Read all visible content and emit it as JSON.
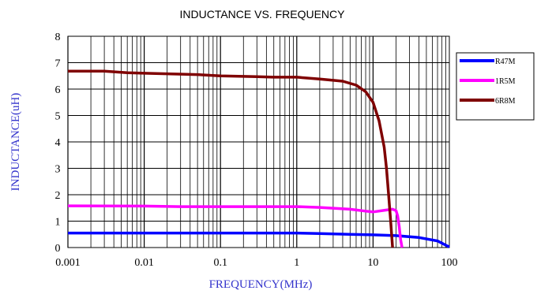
{
  "chart_data": {
    "type": "line",
    "title": "INDUCTANCE VS. FREQUENCY",
    "xlabel": "FREQUENCY(MHz)",
    "ylabel": "INDUCTANCE(uH)",
    "x_scale": "log",
    "xlim": [
      0.001,
      100
    ],
    "ylim": [
      0,
      8
    ],
    "x_ticks": [
      "0.001",
      "0.01",
      "0.1",
      "1",
      "10",
      "100"
    ],
    "y_ticks": [
      "0",
      "1",
      "2",
      "3",
      "4",
      "5",
      "6",
      "7",
      "8"
    ],
    "grid": true,
    "legend_position": "right",
    "label_color": "#3333cc",
    "series": [
      {
        "name": "R47M",
        "color": "#0000ff",
        "points": [
          [
            0.001,
            0.55
          ],
          [
            0.01,
            0.55
          ],
          [
            0.1,
            0.55
          ],
          [
            1,
            0.55
          ],
          [
            2,
            0.53
          ],
          [
            5,
            0.5
          ],
          [
            10,
            0.48
          ],
          [
            20,
            0.45
          ],
          [
            40,
            0.38
          ],
          [
            70,
            0.25
          ],
          [
            100,
            0.02
          ]
        ]
      },
      {
        "name": "1R5M",
        "color": "#ff00ff",
        "points": [
          [
            0.001,
            1.58
          ],
          [
            0.01,
            1.57
          ],
          [
            0.03,
            1.55
          ],
          [
            0.1,
            1.55
          ],
          [
            1,
            1.55
          ],
          [
            2,
            1.52
          ],
          [
            5,
            1.45
          ],
          [
            8,
            1.38
          ],
          [
            10,
            1.35
          ],
          [
            15,
            1.42
          ],
          [
            18,
            1.45
          ],
          [
            20,
            1.4
          ],
          [
            21,
            1.2
          ],
          [
            22,
            0.8
          ],
          [
            23,
            0.3
          ],
          [
            24,
            0.0
          ]
        ]
      },
      {
        "name": "6R8M",
        "color": "#7f0000",
        "points": [
          [
            0.001,
            6.68
          ],
          [
            0.003,
            6.68
          ],
          [
            0.006,
            6.62
          ],
          [
            0.01,
            6.6
          ],
          [
            0.02,
            6.58
          ],
          [
            0.05,
            6.55
          ],
          [
            0.1,
            6.5
          ],
          [
            0.3,
            6.47
          ],
          [
            0.5,
            6.45
          ],
          [
            1,
            6.45
          ],
          [
            2,
            6.38
          ],
          [
            4,
            6.3
          ],
          [
            6,
            6.15
          ],
          [
            8,
            5.9
          ],
          [
            10,
            5.5
          ],
          [
            12,
            4.8
          ],
          [
            14,
            3.8
          ],
          [
            15,
            3.0
          ],
          [
            16,
            2.0
          ],
          [
            17,
            1.0
          ],
          [
            18,
            0.0
          ]
        ]
      }
    ]
  }
}
